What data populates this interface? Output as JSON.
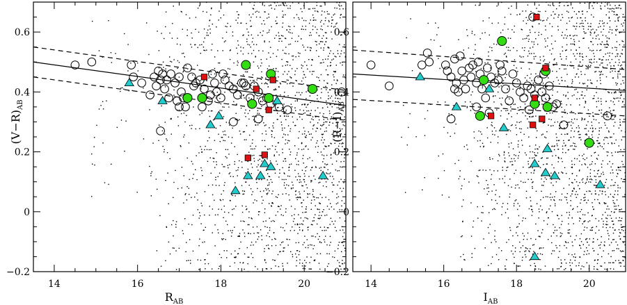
{
  "chart_data": [
    {
      "type": "scatter",
      "title": "",
      "xlabel": "R",
      "xlabel_sub": "AB",
      "ylabel": "(V−R)",
      "ylabel_sub": "AB",
      "xlim": [
        13.5,
        21.0
      ],
      "ylim": [
        -0.2,
        0.7
      ],
      "xticks": [
        14,
        16,
        18,
        20
      ],
      "xtick_labels": [
        "14",
        "16",
        "18",
        "20"
      ],
      "yticks": [
        -0.2,
        0,
        0.2,
        0.4,
        0.6
      ],
      "ytick_labels": [
        "−0.2",
        "0",
        "0.2",
        "0.4",
        "0.6"
      ],
      "grid": false,
      "legend": "none",
      "relation": {
        "x": [
          13.5,
          21.0
        ],
        "y": [
          0.5,
          0.355
        ],
        "band_upper": [
          0.55,
          0.405
        ],
        "band_lower": [
          0.45,
          0.305
        ]
      },
      "series": [
        {
          "marker": "open-circle",
          "color": "#000000",
          "points": [
            [
              14.5,
              0.49
            ],
            [
              14.9,
              0.5
            ],
            [
              15.85,
              0.49
            ],
            [
              15.9,
              0.45
            ],
            [
              16.1,
              0.43
            ],
            [
              16.4,
              0.45
            ],
            [
              16.5,
              0.47
            ],
            [
              16.55,
              0.44
            ],
            [
              16.6,
              0.46
            ],
            [
              16.65,
              0.41
            ],
            [
              16.7,
              0.44
            ],
            [
              16.75,
              0.38
            ],
            [
              16.8,
              0.46
            ],
            [
              16.9,
              0.43
            ],
            [
              17.0,
              0.45
            ],
            [
              17.05,
              0.4
            ],
            [
              17.1,
              0.38
            ],
            [
              17.15,
              0.35
            ],
            [
              17.2,
              0.48
            ],
            [
              17.3,
              0.45
            ],
            [
              17.35,
              0.42
            ],
            [
              17.4,
              0.43
            ],
            [
              17.5,
              0.44
            ],
            [
              17.6,
              0.41
            ],
            [
              17.7,
              0.37
            ],
            [
              17.8,
              0.46
            ],
            [
              17.85,
              0.43
            ],
            [
              17.9,
              0.4
            ],
            [
              18.0,
              0.38
            ],
            [
              18.05,
              0.46
            ],
            [
              18.1,
              0.44
            ],
            [
              18.2,
              0.42
            ],
            [
              18.3,
              0.41
            ],
            [
              18.4,
              0.39
            ],
            [
              18.5,
              0.43
            ],
            [
              18.6,
              0.42
            ],
            [
              18.7,
              0.38
            ],
            [
              18.8,
              0.42
            ],
            [
              18.9,
              0.4
            ],
            [
              19.0,
              0.37
            ],
            [
              19.1,
              0.38
            ],
            [
              19.2,
              0.36
            ],
            [
              16.55,
              0.27
            ],
            [
              17.0,
              0.35
            ],
            [
              18.3,
              0.3
            ],
            [
              18.9,
              0.31
            ],
            [
              19.6,
              0.34
            ],
            [
              20.9,
              0.4
            ],
            [
              16.3,
              0.39
            ],
            [
              17.55,
              0.35
            ],
            [
              19.4,
              0.35
            ],
            [
              16.95,
              0.37
            ],
            [
              17.75,
              0.39
            ],
            [
              18.55,
              0.43
            ],
            [
              16.45,
              0.42
            ]
          ]
        },
        {
          "marker": "filled-circle",
          "color": "#33dd11",
          "points": [
            [
              18.6,
              0.49
            ],
            [
              19.2,
              0.46
            ],
            [
              17.2,
              0.38
            ],
            [
              17.55,
              0.38
            ],
            [
              18.75,
              0.36
            ],
            [
              19.15,
              0.38
            ],
            [
              20.2,
              0.41
            ]
          ]
        },
        {
          "marker": "filled-square",
          "color": "#dd1111",
          "points": [
            [
              17.6,
              0.45
            ],
            [
              18.85,
              0.41
            ],
            [
              19.25,
              0.44
            ],
            [
              19.15,
              0.34
            ],
            [
              18.65,
              0.18
            ],
            [
              19.05,
              0.19
            ]
          ]
        },
        {
          "marker": "filled-triangle",
          "color": "#22cccc",
          "points": [
            [
              15.8,
              0.43
            ],
            [
              16.6,
              0.37
            ],
            [
              17.75,
              0.29
            ],
            [
              17.95,
              0.32
            ],
            [
              18.65,
              0.12
            ],
            [
              18.95,
              0.12
            ],
            [
              19.05,
              0.16
            ],
            [
              19.2,
              0.15
            ],
            [
              18.35,
              0.07
            ],
            [
              19.35,
              0.37
            ],
            [
              20.45,
              0.12
            ]
          ]
        }
      ],
      "background_dots": {
        "marker": "dot",
        "color": "#000000"
      }
    },
    {
      "type": "scatter",
      "title": "",
      "xlabel": "I",
      "xlabel_sub": "AB",
      "ylabel": "(R−I)",
      "ylabel_sub": "AB",
      "xlim": [
        13.5,
        21.0
      ],
      "ylim": [
        -0.2,
        0.7
      ],
      "xticks": [
        14,
        16,
        18,
        20
      ],
      "xtick_labels": [
        "14",
        "16",
        "18",
        "20"
      ],
      "yticks": [
        -0.2,
        0,
        0.2,
        0.4,
        0.6
      ],
      "ytick_labels": [
        "−0.2",
        "0",
        "0.2",
        "0.4",
        "0.6"
      ],
      "grid": false,
      "legend": "none",
      "relation": {
        "x": [
          13.5,
          21.0
        ],
        "y": [
          0.46,
          0.405
        ],
        "band_upper": [
          0.54,
          0.475
        ],
        "band_lower": [
          0.375,
          0.32
        ]
      },
      "series": [
        {
          "marker": "open-circle",
          "color": "#000000",
          "points": [
            [
              14.0,
              0.49
            ],
            [
              14.5,
              0.42
            ],
            [
              15.4,
              0.49
            ],
            [
              15.55,
              0.53
            ],
            [
              15.6,
              0.5
            ],
            [
              16.05,
              0.49
            ],
            [
              16.1,
              0.47
            ],
            [
              16.2,
              0.45
            ],
            [
              16.3,
              0.51
            ],
            [
              16.35,
              0.43
            ],
            [
              16.4,
              0.4
            ],
            [
              16.45,
              0.52
            ],
            [
              16.5,
              0.47
            ],
            [
              16.55,
              0.44
            ],
            [
              16.6,
              0.41
            ],
            [
              16.7,
              0.48
            ],
            [
              16.75,
              0.45
            ],
            [
              16.8,
              0.49
            ],
            [
              16.9,
              0.43
            ],
            [
              16.95,
              0.5
            ],
            [
              17.0,
              0.46
            ],
            [
              17.05,
              0.41
            ],
            [
              17.15,
              0.38
            ],
            [
              17.2,
              0.48
            ],
            [
              17.3,
              0.45
            ],
            [
              17.4,
              0.43
            ],
            [
              17.5,
              0.44
            ],
            [
              17.6,
              0.47
            ],
            [
              17.7,
              0.41
            ],
            [
              17.8,
              0.37
            ],
            [
              17.9,
              0.46
            ],
            [
              18.0,
              0.43
            ],
            [
              18.1,
              0.4
            ],
            [
              18.2,
              0.38
            ],
            [
              18.3,
              0.42
            ],
            [
              18.4,
              0.41
            ],
            [
              18.5,
              0.39
            ],
            [
              18.6,
              0.44
            ],
            [
              18.7,
              0.4
            ],
            [
              18.8,
              0.38
            ],
            [
              18.9,
              0.42
            ],
            [
              19.1,
              0.36
            ],
            [
              19.3,
              0.29
            ],
            [
              20.5,
              0.32
            ],
            [
              18.45,
              0.65
            ],
            [
              16.2,
              0.31
            ],
            [
              16.9,
              0.35
            ],
            [
              17.25,
              0.33
            ],
            [
              18.35,
              0.34
            ],
            [
              19.0,
              0.35
            ],
            [
              16.3,
              0.41
            ],
            [
              17.55,
              0.49
            ],
            [
              18.75,
              0.46
            ]
          ]
        },
        {
          "marker": "filled-circle",
          "color": "#33dd11",
          "points": [
            [
              17.6,
              0.57
            ],
            [
              17.1,
              0.44
            ],
            [
              18.8,
              0.47
            ],
            [
              18.5,
              0.36
            ],
            [
              18.85,
              0.35
            ],
            [
              17.0,
              0.32
            ],
            [
              20.0,
              0.23
            ]
          ]
        },
        {
          "marker": "filled-square",
          "color": "#dd1111",
          "points": [
            [
              18.55,
              0.65
            ],
            [
              18.8,
              0.48
            ],
            [
              18.5,
              0.38
            ],
            [
              17.3,
              0.32
            ],
            [
              18.45,
              0.29
            ],
            [
              18.7,
              0.31
            ]
          ]
        },
        {
          "marker": "filled-triangle",
          "color": "#22cccc",
          "points": [
            [
              15.35,
              0.45
            ],
            [
              17.25,
              0.41
            ],
            [
              16.35,
              0.35
            ],
            [
              17.65,
              0.28
            ],
            [
              18.85,
              0.21
            ],
            [
              18.5,
              0.16
            ],
            [
              18.8,
              0.13
            ],
            [
              19.05,
              0.12
            ],
            [
              20.3,
              0.09
            ],
            [
              18.5,
              -0.15
            ]
          ]
        }
      ],
      "background_dots": {
        "marker": "dot",
        "color": "#000000"
      }
    }
  ]
}
